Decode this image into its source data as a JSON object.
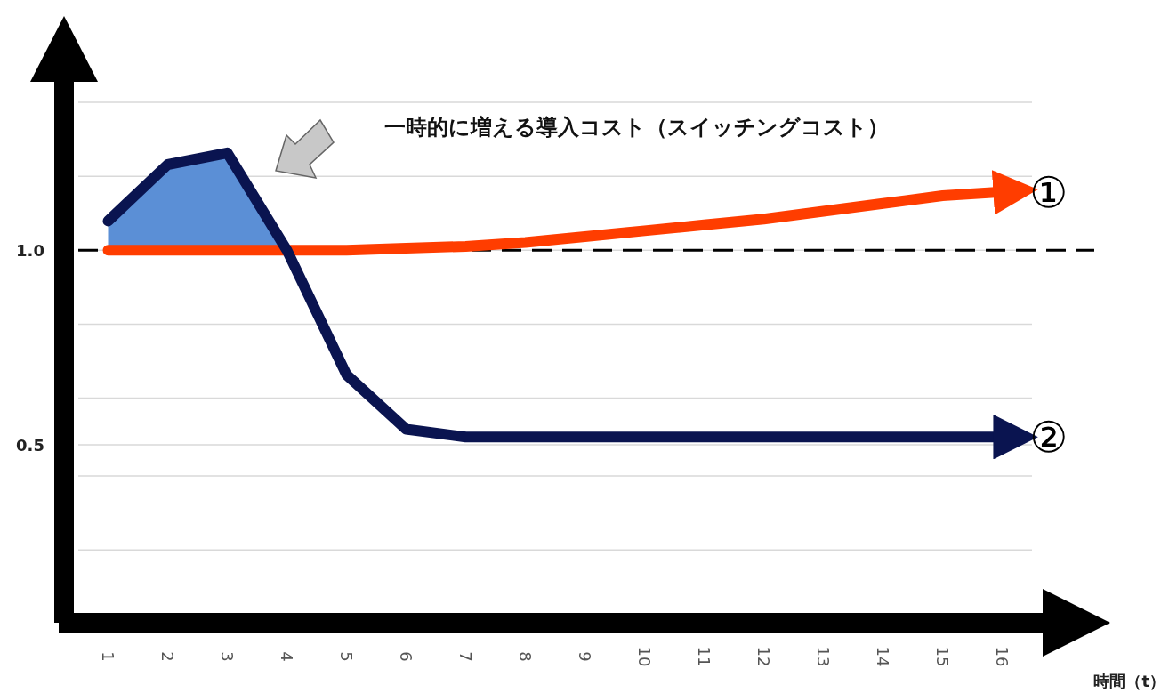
{
  "chart_data": {
    "type": "line",
    "xlabel": "時間（t）",
    "categories": [
      "1",
      "2",
      "3",
      "4",
      "5",
      "6",
      "7",
      "8",
      "9",
      "10",
      "11",
      "12",
      "13",
      "14",
      "15",
      "16"
    ],
    "ylim": [
      0.043,
      1.46
    ],
    "yticks": [
      {
        "value": 1.38,
        "label": null
      },
      {
        "value": 1.19,
        "label": null
      },
      {
        "value": 1.0,
        "label": "1.0"
      },
      {
        "value": 0.81,
        "label": null
      },
      {
        "value": 0.62,
        "label": null
      },
      {
        "value": 0.5,
        "label": "0.5"
      },
      {
        "value": 0.42,
        "label": null
      },
      {
        "value": 0.23,
        "label": null
      }
    ],
    "grid": "y",
    "line_style": "solid",
    "marker": "none",
    "ref_lines": [
      {
        "axis": "y",
        "value": 1.0,
        "color": "#000000",
        "line_style": "dashed"
      }
    ],
    "series": [
      {
        "name": "①",
        "color": "#ff3d00",
        "values": [
          1.0,
          1.0,
          1.0,
          1.0,
          1.0,
          1.005,
          1.01,
          1.02,
          1.035,
          1.05,
          1.065,
          1.08,
          1.1,
          1.12,
          1.14,
          1.15
        ]
      },
      {
        "name": "②",
        "color": "#0a1450",
        "values": [
          1.075,
          1.22,
          1.25,
          1.0,
          0.68,
          0.54,
          0.52,
          0.52,
          0.52,
          0.52,
          0.52,
          0.52,
          0.52,
          0.52,
          0.52,
          0.52
        ],
        "lower": [
          1.0,
          1.0,
          1.0,
          1.0,
          null,
          null,
          null,
          null,
          null,
          null,
          null,
          null,
          null,
          null,
          null,
          null
        ],
        "upper": [
          1.075,
          1.22,
          1.25,
          1.0,
          null,
          null,
          null,
          null,
          null,
          null,
          null,
          null,
          null,
          null,
          null,
          null
        ]
      }
    ],
    "annotations": [
      "一時的に増える導入コスト（スイッチングコスト）"
    ]
  }
}
